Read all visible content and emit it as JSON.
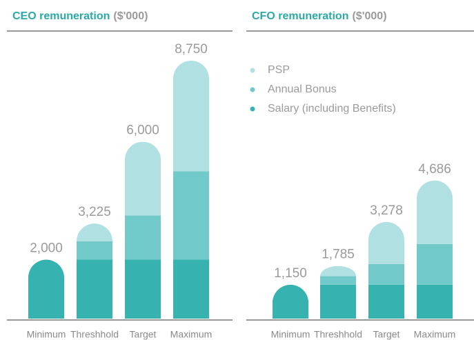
{
  "chart_data": [
    {
      "type": "bar",
      "stacked": true,
      "title": "CEO remuneration",
      "subtitle": "($'000)",
      "categories": [
        "Minimum",
        "Threshhold",
        "Target",
        "Maximum"
      ],
      "series": [
        {
          "name": "Salary (including Benefits)",
          "color": "#36b2b0",
          "values": [
            2000,
            2000,
            2000,
            2000
          ]
        },
        {
          "name": "Annual Bonus",
          "color": "#72c9c9",
          "values": [
            0,
            625,
            1500,
            3000
          ]
        },
        {
          "name": "PSP",
          "color": "#b0e0e2",
          "values": [
            0,
            600,
            2500,
            3750
          ]
        }
      ],
      "totals": [
        2000,
        3225,
        6000,
        8750
      ],
      "total_labels": [
        "2,000",
        "3,225",
        "6,000",
        "8,750"
      ],
      "ylim": [
        0,
        9500
      ],
      "legend": false
    },
    {
      "type": "bar",
      "stacked": true,
      "title": "CFO remuneration",
      "subtitle": "($'000)",
      "categories": [
        "Minimum",
        "Threshhold",
        "Target",
        "Maximum"
      ],
      "series": [
        {
          "name": "Salary (including Benefits)",
          "color": "#36b2b0",
          "values": [
            1150,
            1150,
            1150,
            1150
          ]
        },
        {
          "name": "Annual Bonus",
          "color": "#72c9c9",
          "values": [
            0,
            288,
            700,
            1380
          ]
        },
        {
          "name": "PSP",
          "color": "#b0e0e2",
          "values": [
            0,
            347,
            1428,
            2156
          ]
        }
      ],
      "totals": [
        1150,
        1785,
        3278,
        4686
      ],
      "total_labels": [
        "1,150",
        "1,785",
        "3,278",
        "4,686"
      ],
      "ylim": [
        0,
        9500
      ],
      "legend": "upper left"
    }
  ]
}
